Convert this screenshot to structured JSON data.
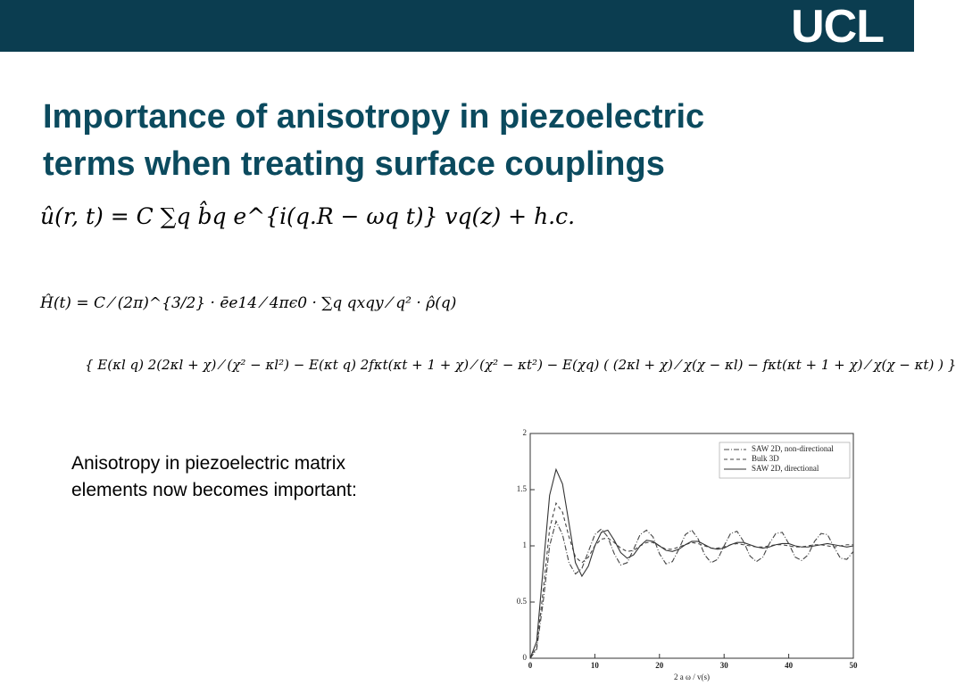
{
  "header": {
    "logo": "UCL"
  },
  "slide": {
    "title_lines": [
      "Importance of anisotropy in piezoelectric",
      "terms when treating surface couplings"
    ],
    "equation_1": "û(r, t) = C ∑q b̂q e^{i(q.R − ωq t)} vq(z) + h.c.",
    "equation_2_line_1": "Ĥ(t) = C ⁄ (2π)^{3/2} · ēe14 ⁄ 4πϵ0 · ∑q qxqy ⁄ q² · ρ̂(q)",
    "equation_2_line_2": "{ E(κl q) 2(2κl + χ) ⁄ (χ² − κl²) − E(κt q) 2fκt(κt + 1 + χ) ⁄ (χ² − κt²) − E(χq) ( (2κl + χ) ⁄ χ(χ − κl) − fκt(κt + 1 + χ) ⁄ χ(χ − κt) ) }",
    "text_lines": [
      "Anisotropy in piezoelectric matrix",
      "elements now becomes important:"
    ]
  },
  "chart_data": {
    "type": "line",
    "x_label": "2 a ω / v(s)",
    "x": [
      0,
      1,
      2,
      3,
      4,
      5,
      6,
      7,
      8,
      9,
      10,
      11,
      12,
      13,
      14,
      15,
      16,
      17,
      18,
      19,
      20,
      21,
      22,
      23,
      24,
      25,
      26,
      27,
      28,
      29,
      30,
      31,
      32,
      33,
      34,
      35,
      36,
      37,
      38,
      39,
      40,
      41,
      42,
      43,
      44,
      45,
      46,
      47,
      48,
      49,
      50
    ],
    "series": [
      {
        "name": "SAW 2D, non-directional",
        "color": "#444444",
        "dash": "6 2 1 2",
        "values": [
          0,
          0.08,
          0.5,
          1.0,
          1.22,
          1.1,
          0.85,
          0.75,
          0.8,
          0.95,
          1.1,
          1.15,
          1.08,
          0.93,
          0.83,
          0.85,
          0.97,
          1.1,
          1.14,
          1.08,
          0.93,
          0.84,
          0.86,
          0.97,
          1.1,
          1.14,
          1.06,
          0.92,
          0.85,
          0.88,
          1.0,
          1.11,
          1.13,
          1.04,
          0.91,
          0.86,
          0.9,
          1.02,
          1.11,
          1.12,
          1.02,
          0.9,
          0.87,
          0.92,
          1.04,
          1.11,
          1.1,
          0.99,
          0.89,
          0.88,
          0.95
        ]
      },
      {
        "name": "Bulk 3D",
        "color": "#444444",
        "dash": "4 3",
        "values": [
          0,
          0.1,
          0.6,
          1.15,
          1.38,
          1.3,
          1.08,
          0.9,
          0.85,
          0.9,
          1.0,
          1.06,
          1.07,
          1.03,
          0.98,
          0.95,
          0.96,
          1.0,
          1.03,
          1.03,
          1.0,
          0.97,
          0.97,
          0.99,
          1.01,
          1.03,
          1.02,
          1.0,
          0.98,
          0.98,
          0.99,
          1.01,
          1.02,
          1.01,
          1.0,
          0.99,
          0.99,
          1.0,
          1.01,
          1.01,
          1.0,
          0.99,
          0.99,
          1.0,
          1.01,
          1.01,
          1.0,
          0.99,
          1.0,
          1.01,
          1.01
        ]
      },
      {
        "name": "SAW 2D, directional",
        "color": "#333333",
        "dash": "none",
        "values": [
          0,
          0.15,
          0.8,
          1.45,
          1.68,
          1.55,
          1.2,
          0.85,
          0.73,
          0.82,
          1.0,
          1.12,
          1.14,
          1.05,
          0.94,
          0.89,
          0.92,
          1.0,
          1.05,
          1.04,
          1.0,
          0.96,
          0.95,
          0.97,
          1.01,
          1.04,
          1.04,
          1.01,
          0.98,
          0.97,
          0.98,
          1.01,
          1.03,
          1.03,
          1.01,
          0.99,
          0.98,
          0.99,
          1.01,
          1.02,
          1.02,
          1.0,
          0.99,
          0.99,
          1.0,
          1.01,
          1.02,
          1.01,
          1.0,
          0.99,
          1.0
        ]
      }
    ],
    "xlim": [
      0,
      50
    ],
    "xticks": [
      0,
      10,
      20,
      30,
      40,
      50
    ],
    "ylim": [
      0,
      2
    ],
    "yticks": [
      0,
      0.5,
      1,
      1.5,
      2
    ],
    "legend": "upper-right",
    "grid": false
  }
}
